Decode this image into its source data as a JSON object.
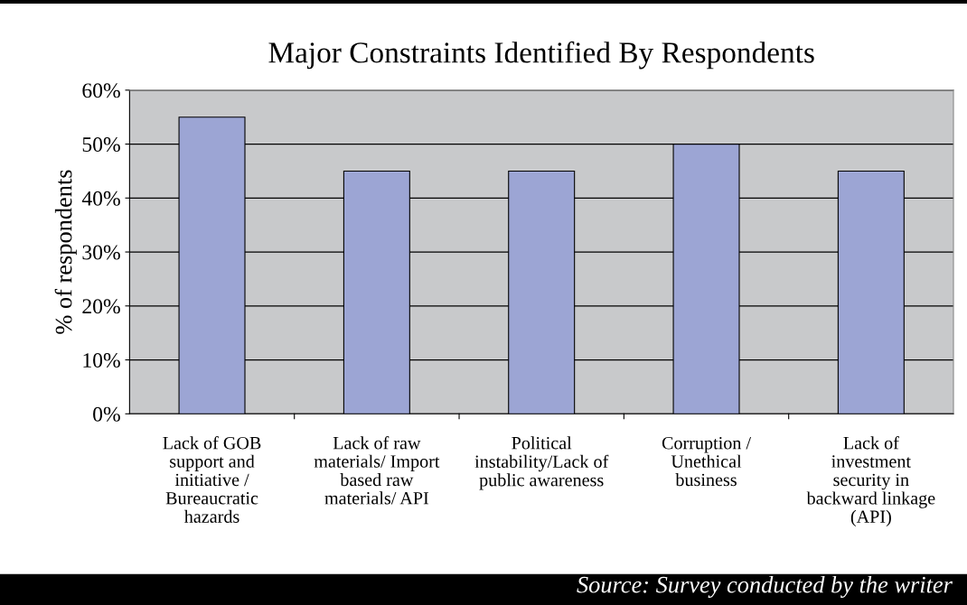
{
  "chart_data": {
    "type": "bar",
    "title": "Major Constraints Identified By Respondents",
    "ylabel": "% of respondents",
    "categories": [
      "Lack of GOB\nsupport and\ninitiative /\nBureaucratic\nhazards",
      "Lack of raw\nmaterials/ Import\nbased raw\nmaterials/ API",
      "Political\ninstability/Lack of\npublic awareness",
      "Corruption /\nUnethical\nbusiness",
      "Lack of\ninvestment\nsecurity in\nbackward linkage\n(API)"
    ],
    "values": [
      55,
      45,
      45,
      50,
      45
    ],
    "color": "#9ca5d4",
    "ylim": [
      0,
      60
    ],
    "yticks": [
      {
        "value": 0,
        "label": "0%"
      },
      {
        "value": 10,
        "label": "10%"
      },
      {
        "value": 20,
        "label": "20%"
      },
      {
        "value": 30,
        "label": "30%"
      },
      {
        "value": 40,
        "label": "40%"
      },
      {
        "value": 50,
        "label": "50%"
      },
      {
        "value": 60,
        "label": "60%"
      }
    ],
    "grid": "y",
    "legend": false,
    "annotations": [
      "Source: Survey conducted by the writer"
    ]
  }
}
